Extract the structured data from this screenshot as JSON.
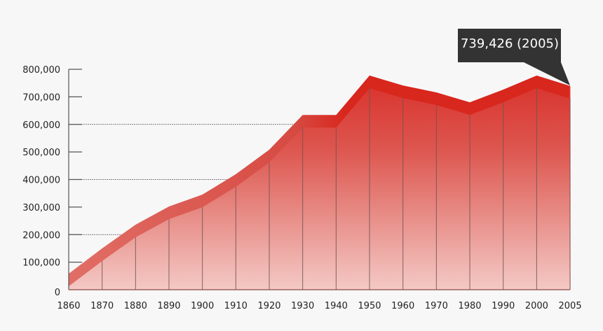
{
  "chart_data": {
    "type": "area",
    "title": "",
    "xlabel": "",
    "ylabel": "",
    "categories": [
      "1860",
      "1870",
      "1880",
      "1890",
      "1900",
      "1910",
      "1920",
      "1930",
      "1940",
      "1950",
      "1960",
      "1970",
      "1980",
      "1990",
      "2000",
      "2005"
    ],
    "series": [
      {
        "values": [
          58000,
          150000,
          236000,
          302000,
          345000,
          419000,
          508000,
          634000,
          634000,
          777000,
          741000,
          716000,
          680000,
          726000,
          777000,
          739426
        ]
      }
    ],
    "ylim": [
      0,
      800000
    ],
    "y_ticks": [
      "0",
      "100,000",
      "200,000",
      "300,000",
      "400,000",
      "500,000",
      "600,000",
      "700,000",
      "800,000"
    ],
    "gridlines": [
      "600,000",
      "400,000",
      "200,000"
    ],
    "colors": {
      "band": "#d8261c",
      "fill_top": "#d9302a",
      "fill_bottom": "#f4c9c5",
      "tooltip_bg": "#333333"
    },
    "tooltip": {
      "text": "739,426 (2005)"
    }
  }
}
